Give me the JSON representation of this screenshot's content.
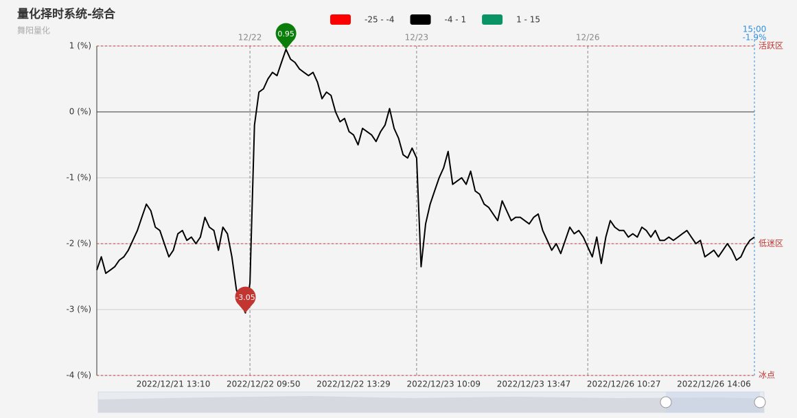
{
  "header": {
    "title": "量化择时系统-综合",
    "subtitle": "舞阳量化"
  },
  "chart_data": {
    "type": "line",
    "pieces": [
      {
        "label": "-25 - -4",
        "range": [
          -25,
          -4
        ],
        "color": "#ff0000"
      },
      {
        "label": "-4 - 1",
        "range": [
          -4,
          1
        ],
        "color": "#000000"
      },
      {
        "label": "1 - 15",
        "range": [
          1,
          15
        ],
        "color": "#0a9466"
      }
    ],
    "ylim": [
      -4,
      1
    ],
    "yticks": [
      {
        "value": 1,
        "label": "1 (%)"
      },
      {
        "value": 0,
        "label": "0 (%)"
      },
      {
        "value": -1,
        "label": "-1 (%)"
      },
      {
        "value": -2,
        "label": "-2 (%)"
      },
      {
        "value": -3,
        "label": "-3 (%)"
      },
      {
        "value": -4,
        "label": "-4 (%)"
      }
    ],
    "grid": true,
    "mark_lines": [
      {
        "value": 1,
        "label": "活跃区"
      },
      {
        "value": -2,
        "label": "低迷区"
      },
      {
        "value": -4,
        "label": "冰点"
      }
    ],
    "end_time": "15:00",
    "categories": [
      null,
      null,
      null,
      null,
      null,
      null,
      null,
      null,
      null,
      null,
      null,
      null,
      null,
      null,
      null,
      null,
      null,
      "2022/12/21 13:10",
      null,
      null,
      null,
      null,
      null,
      null,
      null,
      null,
      null,
      null,
      null,
      null,
      null,
      null,
      null,
      null,
      null,
      null,
      null,
      "2022/12/22 09:50",
      null,
      null,
      null,
      null,
      null,
      null,
      null,
      null,
      null,
      null,
      null,
      null,
      null,
      null,
      null,
      null,
      null,
      null,
      null,
      "2022/12/22 13:29",
      null,
      null,
      null,
      null,
      null,
      null,
      null,
      null,
      null,
      null,
      null,
      null,
      null,
      null,
      null,
      null,
      null,
      null,
      null,
      "2022/12/23 10:09",
      null,
      null,
      null,
      null,
      null,
      null,
      null,
      null,
      null,
      null,
      null,
      null,
      null,
      null,
      null,
      null,
      null,
      null,
      null,
      "2022/12/23 13:47",
      null,
      null,
      null,
      null,
      null,
      null,
      null,
      null,
      null,
      null,
      null,
      null,
      null,
      null,
      null,
      null,
      null,
      null,
      null,
      "2022/12/26 10:27",
      null,
      null,
      null,
      null,
      null,
      null,
      null,
      null,
      null,
      null,
      null,
      null,
      null,
      null,
      null,
      null,
      null,
      null,
      null,
      "2022/12/26 14:06",
      null,
      null,
      null,
      null,
      null,
      null,
      null,
      null,
      null
    ],
    "day_categories": [
      null,
      null,
      null,
      null,
      null,
      null,
      null,
      null,
      null,
      null,
      null,
      null,
      null,
      null,
      null,
      null,
      null,
      null,
      null,
      null,
      null,
      null,
      null,
      null,
      null,
      null,
      null,
      null,
      null,
      null,
      null,
      null,
      null,
      null,
      "12/22",
      null,
      null,
      null,
      null,
      null,
      null,
      null,
      null,
      null,
      null,
      null,
      null,
      null,
      null,
      null,
      null,
      null,
      null,
      null,
      null,
      null,
      null,
      null,
      null,
      null,
      null,
      null,
      null,
      null,
      null,
      null,
      null,
      null,
      null,
      null,
      null,
      "12/23",
      null,
      null,
      null,
      null,
      null,
      null,
      null,
      null,
      null,
      null,
      null,
      null,
      null,
      null,
      null,
      null,
      null,
      null,
      null,
      null,
      null,
      null,
      null,
      null,
      null,
      null,
      null,
      null,
      null,
      null,
      null,
      null,
      null,
      null,
      null,
      null,
      null,
      "12/26",
      null,
      null,
      null,
      null,
      null,
      null,
      null,
      null,
      null,
      null,
      null,
      null,
      null,
      null,
      null,
      null,
      null,
      null,
      null,
      null,
      null,
      null,
      null,
      null,
      null,
      null,
      null,
      null,
      null,
      null,
      null,
      null,
      null,
      null,
      null,
      null,
      null
    ],
    "series": [
      {
        "name": "综合",
        "values": [
          -2.4,
          -2.2,
          -2.45,
          -2.4,
          -2.35,
          -2.25,
          -2.2,
          -2.1,
          -1.95,
          -1.8,
          -1.6,
          -1.4,
          -1.5,
          -1.75,
          -1.8,
          -2.0,
          -2.2,
          -2.1,
          -1.85,
          -1.8,
          -1.95,
          -1.9,
          -2.0,
          -1.9,
          -1.6,
          -1.75,
          -1.8,
          -2.1,
          -1.75,
          -1.85,
          -2.2,
          -2.7,
          -2.9,
          -3.05,
          -2.6,
          -0.2,
          0.3,
          0.35,
          0.5,
          0.6,
          0.55,
          0.75,
          0.95,
          0.8,
          0.75,
          0.65,
          0.6,
          0.55,
          0.6,
          0.45,
          0.2,
          0.3,
          0.25,
          0,
          -0.15,
          -0.1,
          -0.3,
          -0.35,
          -0.5,
          -0.25,
          -0.3,
          -0.35,
          -0.45,
          -0.3,
          -0.2,
          0.05,
          -0.25,
          -0.4,
          -0.65,
          -0.7,
          -0.55,
          -0.7,
          -2.35,
          -1.7,
          -1.4,
          -1.2,
          -1.0,
          -0.85,
          -0.6,
          -1.1,
          -1.05,
          -1.0,
          -1.1,
          -0.9,
          -1.2,
          -1.25,
          -1.4,
          -1.45,
          -1.55,
          -1.65,
          -1.35,
          -1.5,
          -1.65,
          -1.6,
          -1.6,
          -1.65,
          -1.7,
          -1.6,
          -1.55,
          -1.8,
          -1.95,
          -2.1,
          -2.0,
          -2.15,
          -1.95,
          -1.75,
          -1.85,
          -1.8,
          -1.9,
          -2.05,
          -2.2,
          -1.9,
          -2.3,
          -1.9,
          -1.65,
          -1.75,
          -1.8,
          -1.8,
          -1.9,
          -1.85,
          -1.9,
          -1.75,
          -1.8,
          -1.9,
          -1.8,
          -1.95,
          -1.95,
          -1.9,
          -1.95,
          -1.9,
          -1.85,
          -1.8,
          -1.9,
          -2.0,
          -1.95,
          -2.2,
          -2.15,
          -2.1,
          -2.2,
          -2.1,
          -2.0,
          -2.1,
          -2.25,
          -2.2,
          -2.05,
          -1.95,
          -1.9
        ],
        "value_labels": [
          null,
          null,
          null,
          null,
          null,
          null,
          null,
          null,
          null,
          null,
          null,
          null,
          null,
          null,
          null,
          null,
          null,
          null,
          null,
          null,
          null,
          null,
          null,
          null,
          null,
          null,
          null,
          null,
          null,
          null,
          null,
          null,
          null,
          null,
          null,
          null,
          null,
          null,
          null,
          null,
          null,
          null,
          null,
          null,
          null,
          null,
          null,
          null,
          null,
          null,
          null,
          null,
          null,
          null,
          null,
          null,
          null,
          null,
          null,
          null,
          null,
          null,
          null,
          null,
          null,
          null,
          null,
          null,
          null,
          null,
          null,
          null,
          null,
          null,
          null,
          null,
          null,
          null,
          null,
          null,
          null,
          null,
          null,
          null,
          null,
          null,
          null,
          null,
          null,
          null,
          null,
          null,
          null,
          null,
          null,
          null,
          null,
          null,
          null,
          null,
          null,
          null,
          null,
          null,
          null,
          null,
          null,
          null,
          null,
          null,
          null,
          null,
          null,
          null,
          null,
          null,
          null,
          null,
          null,
          null,
          null,
          null,
          null,
          null,
          null,
          null,
          null,
          null,
          null,
          null,
          null,
          null,
          null,
          null,
          null,
          null,
          null,
          null,
          null,
          null,
          null,
          null,
          null,
          null,
          null,
          null,
          "-1.9%"
        ]
      }
    ]
  }
}
